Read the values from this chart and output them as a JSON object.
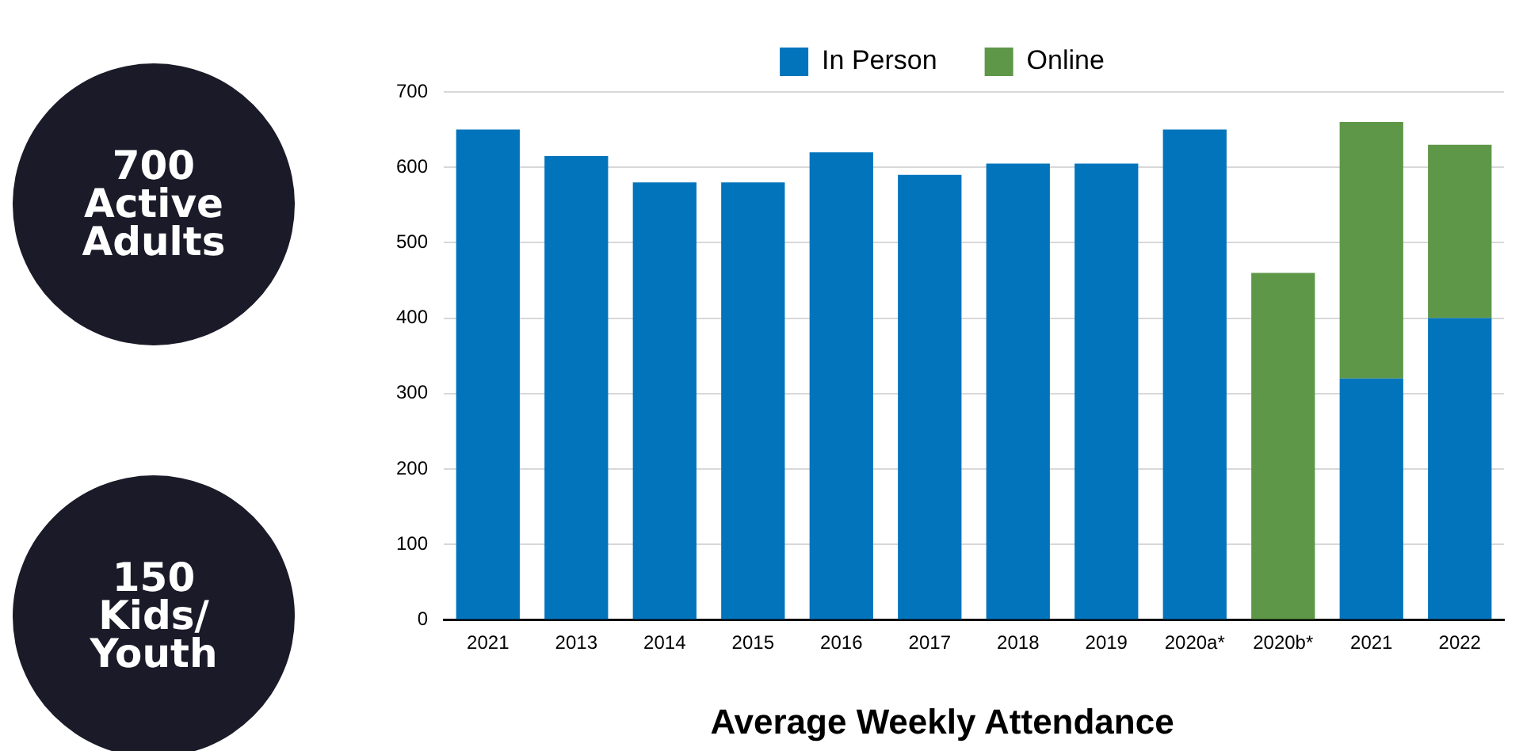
{
  "chart_data": {
    "type": "bar",
    "title": "Average Weekly Attendance",
    "stacked": true,
    "categories": [
      "2021",
      "2013",
      "2014",
      "2015",
      "2016",
      "2017",
      "2018",
      "2019",
      "2020a*",
      "2020b*",
      "2021",
      "2022"
    ],
    "series": [
      {
        "name": "In Person",
        "color": "#0274bc",
        "values": [
          650,
          615,
          580,
          580,
          620,
          590,
          605,
          605,
          650,
          0,
          320,
          400
        ]
      },
      {
        "name": "Online",
        "color": "#5e9747",
        "values": [
          null,
          null,
          null,
          null,
          null,
          null,
          null,
          null,
          null,
          460,
          340,
          230
        ]
      }
    ],
    "ylim": [
      0,
      700
    ],
    "yticks": [
      0,
      100,
      200,
      300,
      400,
      500,
      600,
      700
    ],
    "grid": "y",
    "legend": "top",
    "annotations": [
      "700\nActive\nAdults",
      "150\nKids/\nYouth"
    ]
  }
}
